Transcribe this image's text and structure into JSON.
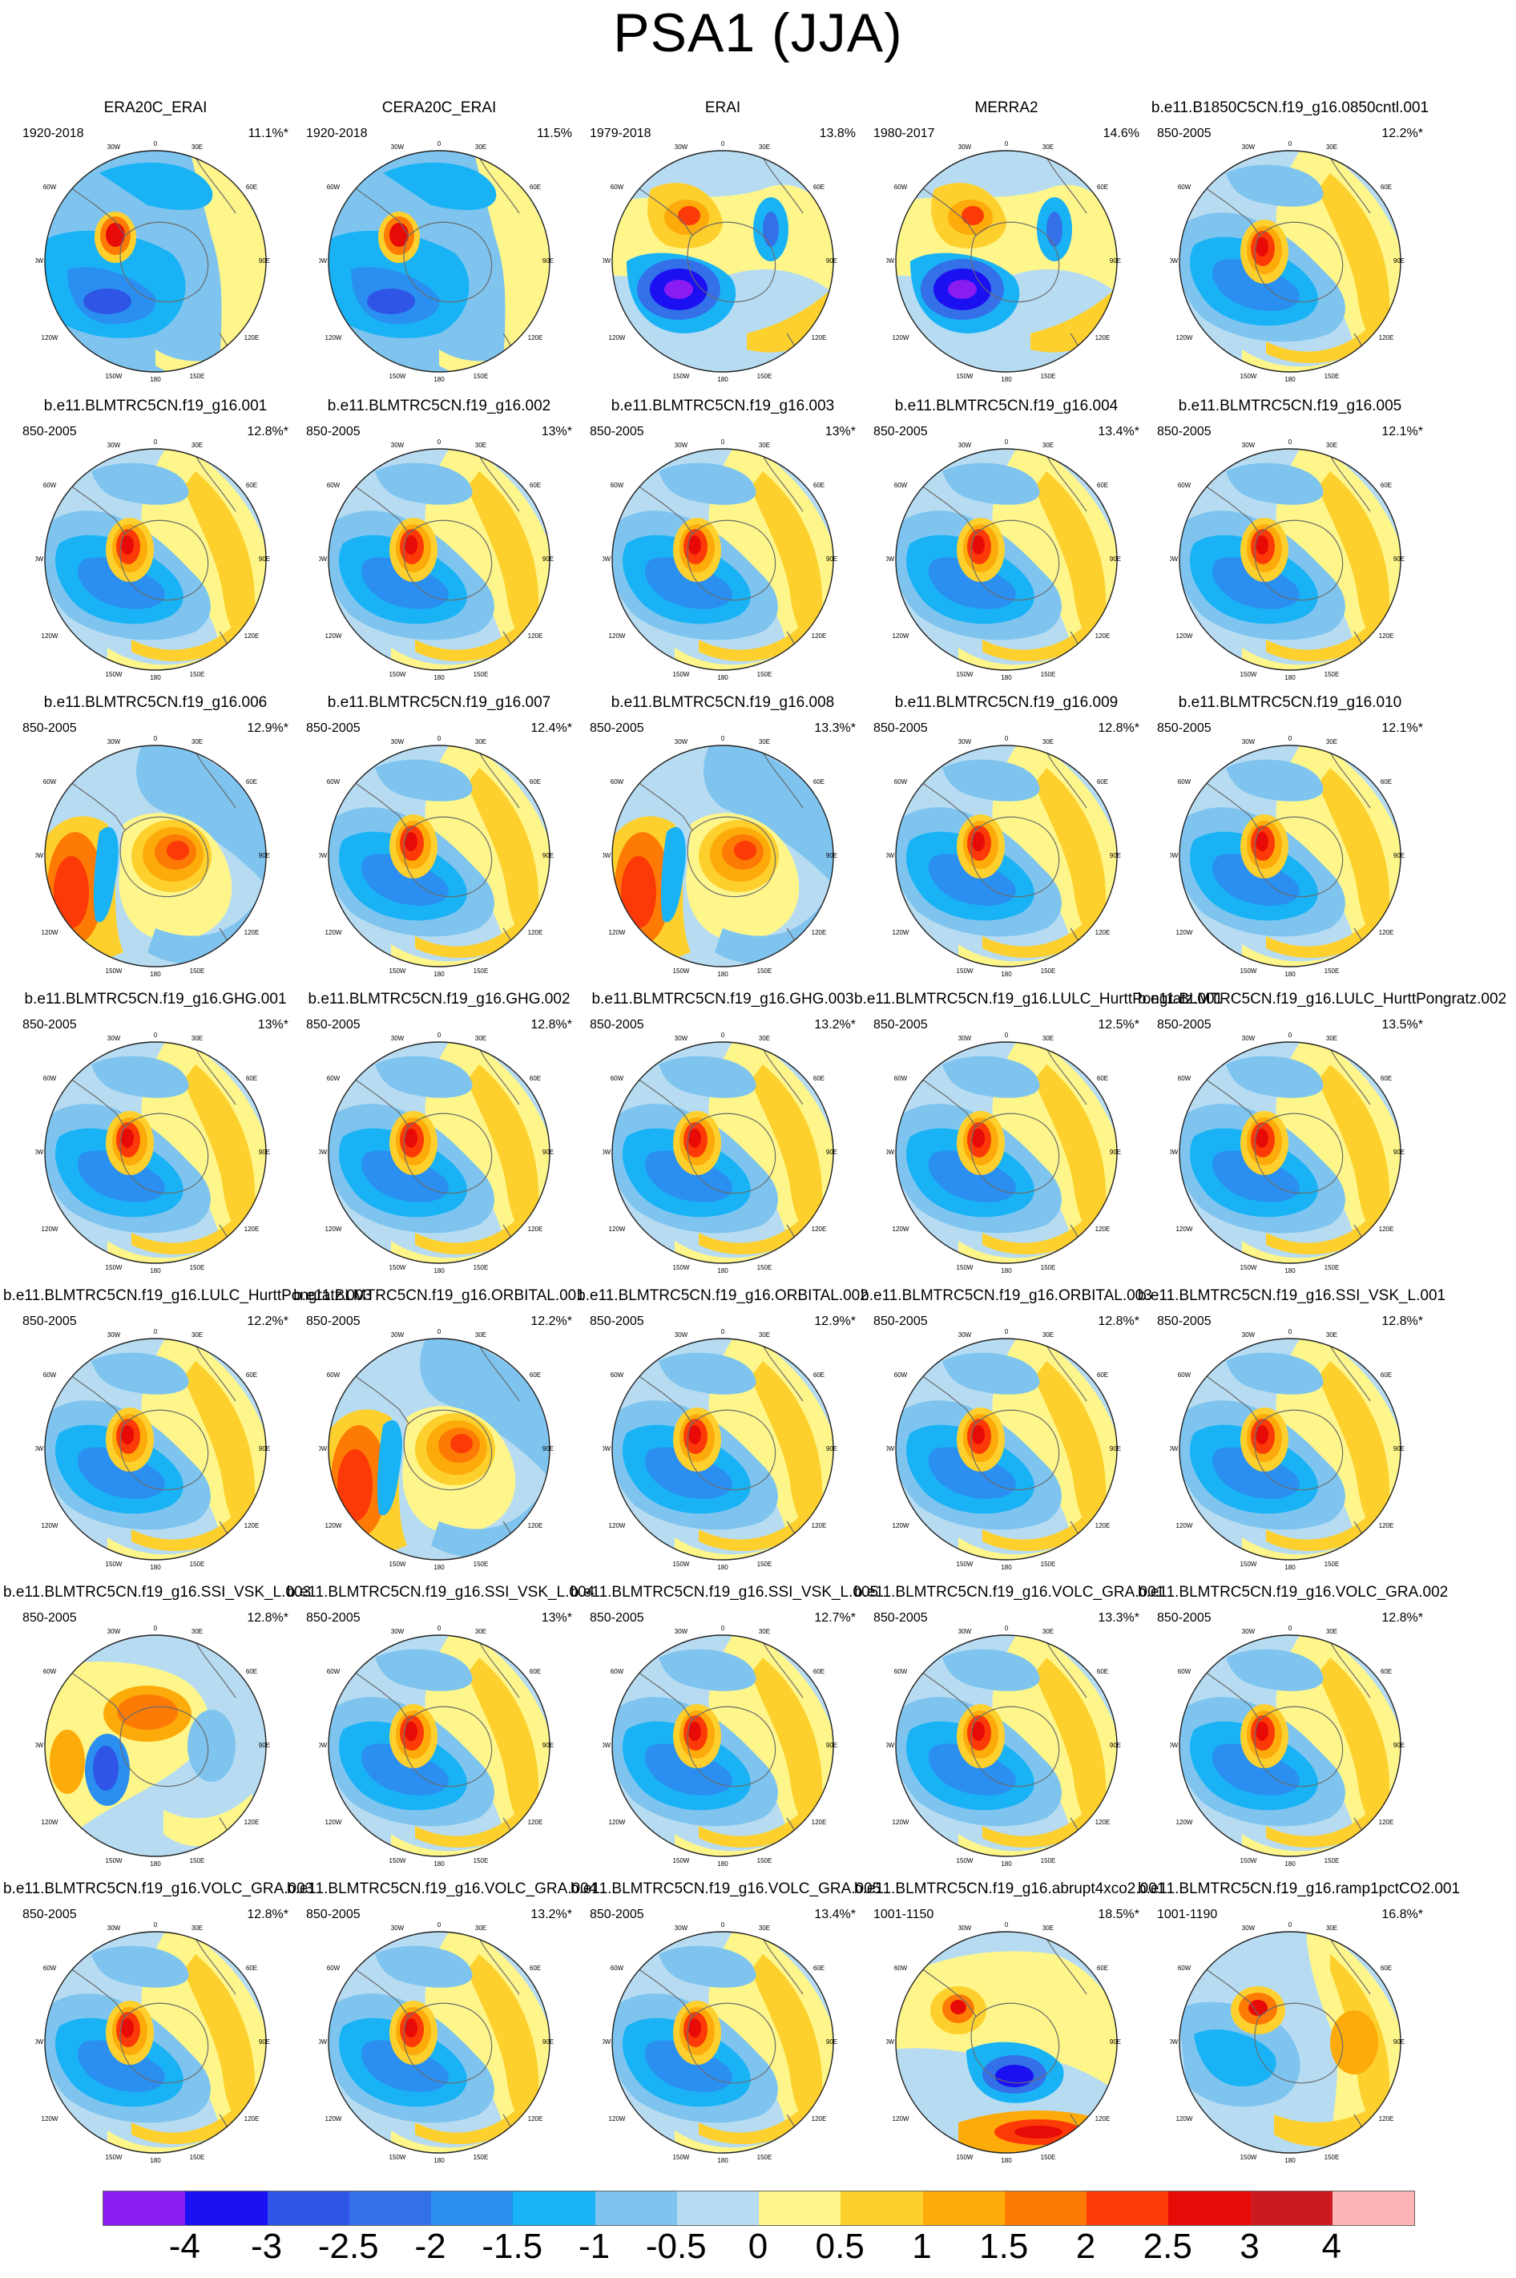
{
  "title": "PSA1 (JJA)",
  "lon_labels": [
    "30W",
    "0",
    "30E",
    "60W",
    "60E",
    "90W",
    "90E",
    "120W",
    "120E",
    "150W",
    "150E",
    "180"
  ],
  "colorbar": {
    "labels": [
      "-4",
      "-3",
      "-2.5",
      "-2",
      "-1.5",
      "-1",
      "-0.5",
      "0",
      "0.5",
      "1",
      "1.5",
      "2",
      "2.5",
      "3",
      "4"
    ],
    "colors": [
      "#8a1cf2",
      "#1a10f2",
      "#2f55e6",
      "#3470e8",
      "#2a8ff0",
      "#19b3f5",
      "#7ec4ef",
      "#b7dcf2",
      "#fef68a",
      "#fdd02e",
      "#fdab0a",
      "#fd7a05",
      "#fb3a07",
      "#e80a07",
      "#cc1a22",
      "#fdb5b5"
    ]
  },
  "panels": [
    {
      "name": "ERA20C_ERAI",
      "years": "1920-2018",
      "pct": "11.1%*",
      "type": "obs"
    },
    {
      "name": "CERA20C_ERAI",
      "years": "1920-2018",
      "pct": "11.5%",
      "type": "obs"
    },
    {
      "name": "ERAI",
      "years": "1979-2018",
      "pct": "13.8%",
      "type": "reanal"
    },
    {
      "name": "MERRA2",
      "years": "1980-2017",
      "pct": "14.6%",
      "type": "reanal"
    },
    {
      "name": "b.e11.B1850C5CN.f19_g16.0850cntl.001",
      "years": "850-2005",
      "pct": "12.2%*",
      "type": "std"
    },
    {
      "name": "b.e11.BLMTRC5CN.f19_g16.001",
      "years": "850-2005",
      "pct": "12.8%*",
      "type": "std"
    },
    {
      "name": "b.e11.BLMTRC5CN.f19_g16.002",
      "years": "850-2005",
      "pct": "13%*",
      "type": "std"
    },
    {
      "name": "b.e11.BLMTRC5CN.f19_g16.003",
      "years": "850-2005",
      "pct": "13%*",
      "type": "std"
    },
    {
      "name": "b.e11.BLMTRC5CN.f19_g16.004",
      "years": "850-2005",
      "pct": "13.4%*",
      "type": "std"
    },
    {
      "name": "b.e11.BLMTRC5CN.f19_g16.005",
      "years": "850-2005",
      "pct": "12.1%*",
      "type": "std"
    },
    {
      "name": "b.e11.BLMTRC5CN.f19_g16.006",
      "years": "850-2005",
      "pct": "12.9%*",
      "type": "inv"
    },
    {
      "name": "b.e11.BLMTRC5CN.f19_g16.007",
      "years": "850-2005",
      "pct": "12.4%*",
      "type": "std"
    },
    {
      "name": "b.e11.BLMTRC5CN.f19_g16.008",
      "years": "850-2005",
      "pct": "13.3%*",
      "type": "inv"
    },
    {
      "name": "b.e11.BLMTRC5CN.f19_g16.009",
      "years": "850-2005",
      "pct": "12.8%*",
      "type": "std"
    },
    {
      "name": "b.e11.BLMTRC5CN.f19_g16.010",
      "years": "850-2005",
      "pct": "12.1%*",
      "type": "std"
    },
    {
      "name": "b.e11.BLMTRC5CN.f19_g16.GHG.001",
      "years": "850-2005",
      "pct": "13%*",
      "type": "std"
    },
    {
      "name": "b.e11.BLMTRC5CN.f19_g16.GHG.002",
      "years": "850-2005",
      "pct": "12.8%*",
      "type": "std"
    },
    {
      "name": "b.e11.BLMTRC5CN.f19_g16.GHG.003",
      "years": "850-2005",
      "pct": "13.2%*",
      "type": "std"
    },
    {
      "name": "b.e11.BLMTRC5CN.f19_g16.LULC_HurttPongratz.001",
      "years": "850-2005",
      "pct": "12.5%*",
      "type": "std"
    },
    {
      "name": "b.e11.BLMTRC5CN.f19_g16.LULC_HurttPongratz.002",
      "years": "850-2005",
      "pct": "13.5%*",
      "type": "std"
    },
    {
      "name": "b.e11.BLMTRC5CN.f19_g16.LULC_HurttPongratz.003",
      "years": "850-2005",
      "pct": "12.2%*",
      "type": "std"
    },
    {
      "name": "b.e11.BLMTRC5CN.f19_g16.ORBITAL.001",
      "years": "850-2005",
      "pct": "12.2%*",
      "type": "inv"
    },
    {
      "name": "b.e11.BLMTRC5CN.f19_g16.ORBITAL.002",
      "years": "850-2005",
      "pct": "12.9%*",
      "type": "std"
    },
    {
      "name": "b.e11.BLMTRC5CN.f19_g16.ORBITAL.003",
      "years": "850-2005",
      "pct": "12.8%*",
      "type": "std"
    },
    {
      "name": "b.e11.BLMTRC5CN.f19_g16.SSI_VSK_L.001",
      "years": "850-2005",
      "pct": "12.8%*",
      "type": "std"
    },
    {
      "name": "b.e11.BLMTRC5CN.f19_g16.SSI_VSK_L.003",
      "years": "850-2005",
      "pct": "12.8%*",
      "type": "mixed"
    },
    {
      "name": "b.e11.BLMTRC5CN.f19_g16.SSI_VSK_L.004",
      "years": "850-2005",
      "pct": "13%*",
      "type": "std"
    },
    {
      "name": "b.e11.BLMTRC5CN.f19_g16.SSI_VSK_L.005",
      "years": "850-2005",
      "pct": "12.7%*",
      "type": "std"
    },
    {
      "name": "b.e11.BLMTRC5CN.f19_g16.VOLC_GRA.001",
      "years": "850-2005",
      "pct": "13.3%*",
      "type": "std"
    },
    {
      "name": "b.e11.BLMTRC5CN.f19_g16.VOLC_GRA.002",
      "years": "850-2005",
      "pct": "12.8%*",
      "type": "std"
    },
    {
      "name": "b.e11.BLMTRC5CN.f19_g16.VOLC_GRA.003",
      "years": "850-2005",
      "pct": "12.8%*",
      "type": "std"
    },
    {
      "name": "b.e11.BLMTRC5CN.f19_g16.VOLC_GRA.004",
      "years": "850-2005",
      "pct": "13.2%*",
      "type": "std"
    },
    {
      "name": "b.e11.BLMTRC5CN.f19_g16.VOLC_GRA.005",
      "years": "850-2005",
      "pct": "13.4%*",
      "type": "std"
    },
    {
      "name": "b.e11.BLMTRC5CN.f19_g16.abrupt4xco2.001",
      "years": "1001-1150",
      "pct": "18.5%*",
      "type": "abrupt"
    },
    {
      "name": "b.e11.BLMTRC5CN.f19_g16.ramp1pctCO2.001",
      "years": "1001-1190",
      "pct": "16.8%*",
      "type": "ramp"
    }
  ]
}
